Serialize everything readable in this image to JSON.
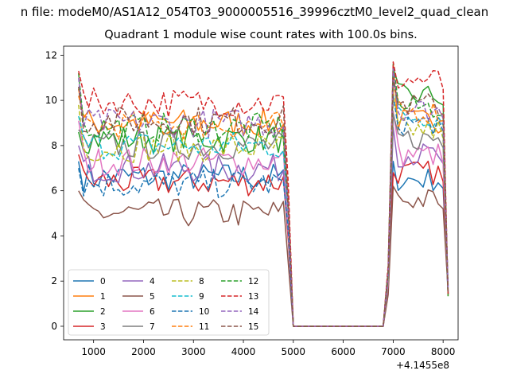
{
  "chart_data": {
    "type": "line",
    "suptitle": "n file: modeM0/AS1A12_054T03_9000005516_39996cztM0_level2_quad_clean",
    "title": "Quadrant 1 module wise count rates with 100.0s bins.",
    "xlabel": "",
    "ylabel": "",
    "x_offset_label": "+4.1455e8",
    "xlim": [
      400,
      8300
    ],
    "ylim": [
      -0.6,
      12.4
    ],
    "x_ticks": [
      1000,
      2000,
      3000,
      4000,
      5000,
      6000,
      7000,
      8000
    ],
    "y_ticks": [
      0,
      2,
      4,
      6,
      8,
      10,
      12
    ],
    "grid": false,
    "legend": {
      "loc": "lower left",
      "ncol": 4
    },
    "x": [
      700,
      800,
      900,
      1000,
      1100,
      1200,
      1300,
      1400,
      1500,
      1600,
      1700,
      1800,
      1900,
      2000,
      2100,
      2200,
      2300,
      2400,
      2500,
      2600,
      2700,
      2800,
      2900,
      3000,
      3100,
      3200,
      3300,
      3400,
      3500,
      3600,
      3700,
      3800,
      3900,
      4000,
      4100,
      4200,
      4300,
      4400,
      4500,
      4600,
      4700,
      4800,
      4900,
      5000,
      5100,
      5200,
      5300,
      5400,
      5500,
      5600,
      5700,
      5800,
      5900,
      6000,
      6100,
      6200,
      6300,
      6400,
      6500,
      6600,
      6700,
      6800,
      6900,
      7000,
      7100,
      7200,
      7300,
      7400,
      7500,
      7600,
      7700,
      7800,
      7900,
      8000,
      8100
    ],
    "active_index_ranges": [
      [
        0,
        43
      ],
      [
        61,
        74
      ]
    ],
    "series": [
      {
        "name": "0",
        "color": "#1f77b4",
        "dash": "solid",
        "base": 6.6,
        "second_base": 6.5,
        "start": 7.3,
        "peak": 7.3
      },
      {
        "name": "1",
        "color": "#ff7f0e",
        "dash": "solid",
        "base": 9.0,
        "second_base": 9.1,
        "start": 10.5,
        "peak": 11.6
      },
      {
        "name": "2",
        "color": "#2ca02c",
        "dash": "solid",
        "base": 8.3,
        "second_base": 10.2,
        "start": 8.6,
        "peak": 11.4
      },
      {
        "name": "3",
        "color": "#d62728",
        "dash": "solid",
        "base": 6.4,
        "second_base": 6.8,
        "start": 7.6,
        "peak": 6.8
      },
      {
        "name": "4",
        "color": "#9467bd",
        "dash": "solid",
        "base": 7.0,
        "second_base": 7.6,
        "start": 8.0,
        "peak": 8.8
      },
      {
        "name": "5",
        "color": "#8c564b",
        "dash": "solid",
        "base": 5.0,
        "second_base": 5.6,
        "start": 6.0,
        "peak": 6.2
      },
      {
        "name": "6",
        "color": "#e377c2",
        "dash": "solid",
        "base": 7.3,
        "second_base": 7.6,
        "start": 9.1,
        "peak": 9.5
      },
      {
        "name": "7",
        "color": "#7f7f7f",
        "dash": "solid",
        "base": 8.0,
        "second_base": 8.3,
        "start": 8.7,
        "peak": 9.4
      },
      {
        "name": "8",
        "color": "#bcbd22",
        "dash": "dashed",
        "base": 7.9,
        "second_base": 8.7,
        "start": 9.8,
        "peak": 10.3
      },
      {
        "name": "9",
        "color": "#17becf",
        "dash": "dashed",
        "base": 8.0,
        "second_base": 9.3,
        "start": 9.3,
        "peak": 10.8
      },
      {
        "name": "10",
        "color": "#1f77b4",
        "dash": "dashed",
        "base": 6.3,
        "second_base": 9.0,
        "start": 7.0,
        "peak": 10.2
      },
      {
        "name": "11",
        "color": "#ff7f0e",
        "dash": "dashed",
        "base": 8.9,
        "second_base": 9.5,
        "start": 10.2,
        "peak": 10.6
      },
      {
        "name": "12",
        "color": "#2ca02c",
        "dash": "dashed",
        "base": 8.8,
        "second_base": 9.7,
        "start": 11.2,
        "peak": 11.6
      },
      {
        "name": "13",
        "color": "#d62728",
        "dash": "dashed",
        "base": 9.9,
        "second_base": 10.9,
        "start": 11.3,
        "peak": 11.7
      },
      {
        "name": "14",
        "color": "#9467bd",
        "dash": "dashed",
        "base": 9.0,
        "second_base": 9.6,
        "start": 11.0,
        "peak": 11.4
      },
      {
        "name": "15",
        "color": "#8c564b",
        "dash": "dashed",
        "base": 9.1,
        "second_base": 9.8,
        "start": 10.6,
        "peak": 11.0
      }
    ]
  }
}
